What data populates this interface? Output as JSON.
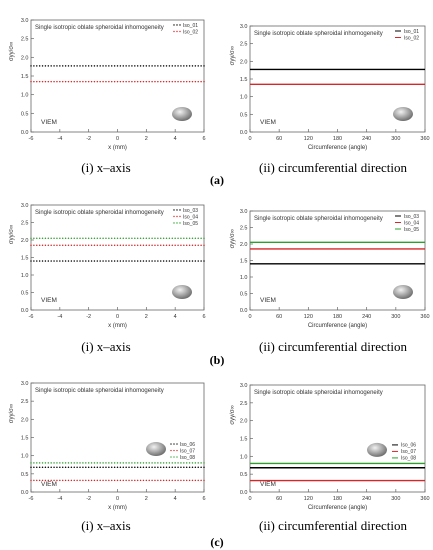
{
  "figure": {
    "rows": [
      {
        "label": "(a)",
        "captions": [
          "(i) x–axis",
          "(ii) circumferential direction"
        ]
      },
      {
        "label": "(b)",
        "captions": [
          "(i) x–axis",
          "(ii) circumferential direction"
        ]
      },
      {
        "label": "(c)",
        "captions": [
          "(i) x–axis",
          "(ii) circumferential direction"
        ]
      }
    ]
  },
  "chart_data": [
    {
      "type": "scatter",
      "title": "Single isotropic oblate spheroidal inhomogeneity",
      "annotation": "VIEM",
      "xlabel": "x (mm)",
      "ylabel": "σyy/σ∞",
      "xlim": [
        -6,
        6
      ],
      "ylim": [
        0,
        3.0
      ],
      "x_ticks": [
        -6,
        -4,
        -2,
        0,
        2,
        4,
        6
      ],
      "y_ticks": [
        0.0,
        0.5,
        1.0,
        1.5,
        2.0,
        2.5,
        3.0
      ],
      "legend_position": "top-right",
      "series": [
        {
          "name": "Iso_01",
          "color": "#000000",
          "y": 1.77
        },
        {
          "name": "Iso_02",
          "color": "#d62728",
          "y": 1.35
        }
      ]
    },
    {
      "type": "line",
      "title": "Single isotropic oblate spheroidal inhomogeneity",
      "annotation": "VIEM",
      "xlabel": "Circumference (angle)",
      "ylabel": "σyy/σ∞",
      "xlim": [
        0,
        360
      ],
      "ylim": [
        0,
        3.0
      ],
      "x_ticks": [
        0,
        60,
        120,
        180,
        240,
        300,
        360
      ],
      "y_ticks": [
        0.0,
        0.5,
        1.0,
        1.5,
        2.0,
        2.5,
        3.0
      ],
      "legend_position": "top-right",
      "series": [
        {
          "name": "Iso_01",
          "color": "#000000",
          "y": 1.77
        },
        {
          "name": "Iso_02",
          "color": "#d62728",
          "y": 1.35
        }
      ]
    },
    {
      "type": "scatter",
      "title": "Single isotropic oblate spheroidal inhomogeneity",
      "annotation": "VIEM",
      "xlabel": "x (mm)",
      "ylabel": "σyy/σ∞",
      "xlim": [
        -6,
        6
      ],
      "ylim": [
        0,
        3.0
      ],
      "x_ticks": [
        -6,
        -4,
        -2,
        0,
        2,
        4,
        6
      ],
      "y_ticks": [
        0.0,
        0.5,
        1.0,
        1.5,
        2.0,
        2.5,
        3.0
      ],
      "legend_position": "top-right",
      "series": [
        {
          "name": "Iso_03",
          "color": "#000000",
          "y": 1.4
        },
        {
          "name": "Iso_04",
          "color": "#d62728",
          "y": 1.85
        },
        {
          "name": "Iso_05",
          "color": "#2ca02c",
          "y": 2.05
        }
      ]
    },
    {
      "type": "line",
      "title": "Single isotropic oblate spheroidal inhomogeneity",
      "annotation": "VIEM",
      "xlabel": "Circumference (angle)",
      "ylabel": "σyy/σ∞",
      "xlim": [
        0,
        360
      ],
      "ylim": [
        0,
        3.0
      ],
      "x_ticks": [
        0,
        60,
        120,
        180,
        240,
        300,
        360
      ],
      "y_ticks": [
        0.0,
        0.5,
        1.0,
        1.5,
        2.0,
        2.5,
        3.0
      ],
      "legend_position": "top-right",
      "series": [
        {
          "name": "Iso_03",
          "color": "#000000",
          "y": 1.4
        },
        {
          "name": "Iso_04",
          "color": "#d62728",
          "y": 1.85
        },
        {
          "name": "Iso_05",
          "color": "#2ca02c",
          "y": 2.05
        }
      ]
    },
    {
      "type": "scatter",
      "title": "Single isotropic oblate spheroidal inhomogeneity",
      "annotation": "VIEM",
      "xlabel": "x (mm)",
      "ylabel": "σyy/σ∞",
      "xlim": [
        -6,
        6
      ],
      "ylim": [
        0,
        3.0
      ],
      "x_ticks": [
        -6,
        -4,
        -2,
        0,
        2,
        4,
        6
      ],
      "y_ticks": [
        0.0,
        0.5,
        1.0,
        1.5,
        2.0,
        2.5,
        3.0
      ],
      "legend_position": "right",
      "series": [
        {
          "name": "Iso_06",
          "color": "#000000",
          "y": 0.68
        },
        {
          "name": "Iso_07",
          "color": "#d62728",
          "y": 0.32
        },
        {
          "name": "Iso_08",
          "color": "#2ca02c",
          "y": 0.8
        }
      ]
    },
    {
      "type": "line",
      "title": "Single isotropic oblate spheroidal inhomogeneity",
      "annotation": "VIEM",
      "xlabel": "Circumference (angle)",
      "ylabel": "σyy/σ∞",
      "xlim": [
        0,
        360
      ],
      "ylim": [
        0,
        3.0
      ],
      "x_ticks": [
        0,
        60,
        120,
        180,
        240,
        300,
        360
      ],
      "y_ticks": [
        0.0,
        0.5,
        1.0,
        1.5,
        2.0,
        2.5,
        3.0
      ],
      "legend_position": "right",
      "series": [
        {
          "name": "Iso_06",
          "color": "#000000",
          "y": 0.68
        },
        {
          "name": "Iso_07",
          "color": "#d62728",
          "y": 0.32
        },
        {
          "name": "Iso_08",
          "color": "#2ca02c",
          "y": 0.8
        }
      ]
    }
  ]
}
